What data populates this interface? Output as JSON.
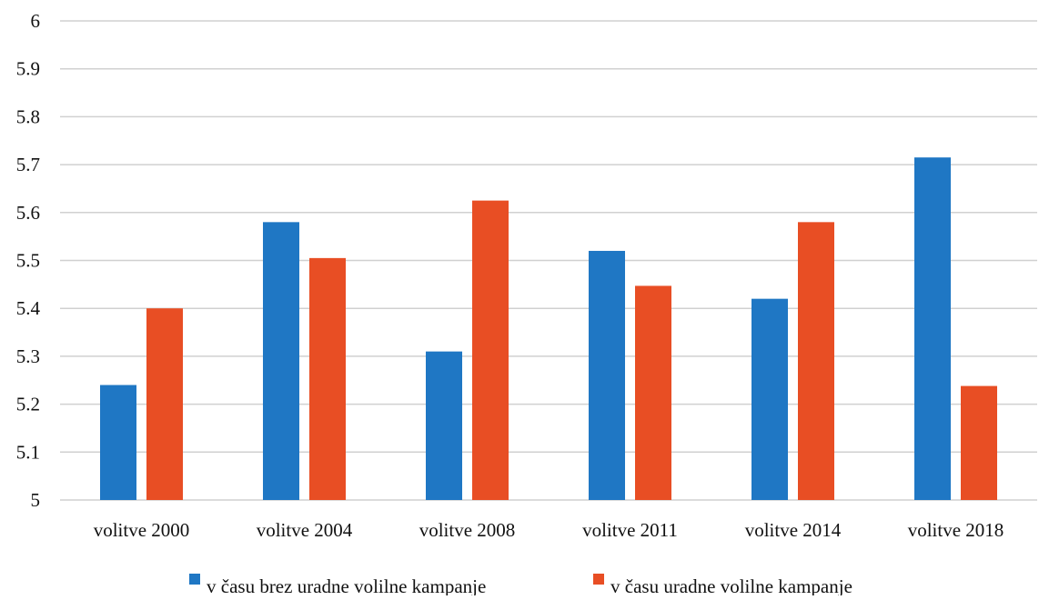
{
  "chart_data": {
    "type": "bar",
    "categories": [
      "volitve 2000",
      "volitve 2004",
      "volitve 2008",
      "volitve 2011",
      "volitve 2014",
      "volitve 2018"
    ],
    "series": [
      {
        "name": "v času brez uradne volilne kampanje",
        "color": "#1f77c4",
        "values": [
          5.24,
          5.58,
          5.31,
          5.52,
          5.42,
          5.715
        ]
      },
      {
        "name": "v času uradne volilne kampanje",
        "color": "#e84e24",
        "values": [
          5.4,
          5.505,
          5.625,
          5.447,
          5.58,
          5.238
        ]
      }
    ],
    "ylim": [
      5,
      6
    ],
    "yticks": [
      "5",
      "5.1",
      "5.2",
      "5.3",
      "5.4",
      "5.5",
      "5.6",
      "5.7",
      "5.8",
      "5.9",
      "6"
    ],
    "grid": true,
    "gridColor": "#d0d0d0",
    "legend": "bottom",
    "title": "",
    "xlabel": "",
    "ylabel": ""
  }
}
